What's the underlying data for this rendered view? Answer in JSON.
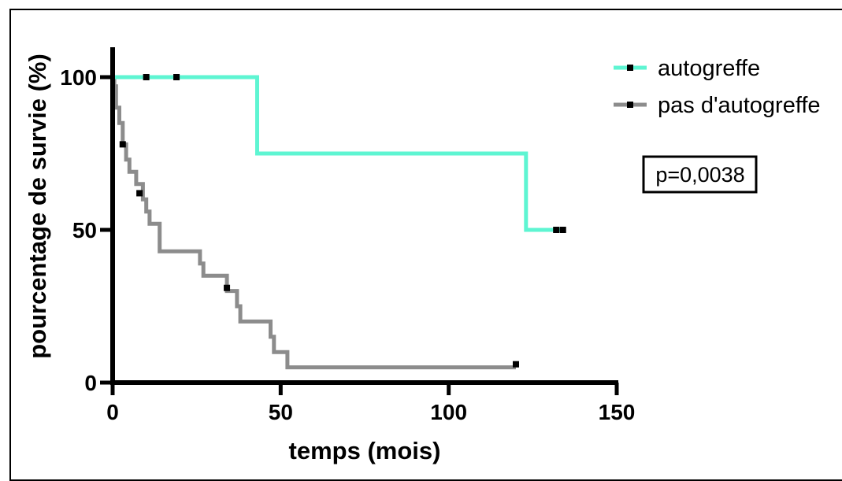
{
  "chart_data": {
    "type": "line",
    "subtype": "kaplan-meier",
    "title": "",
    "xlabel": "temps (mois)",
    "ylabel": "pourcentage de survie (%)",
    "xlim": [
      0,
      150
    ],
    "ylim": [
      0,
      100
    ],
    "xticks": [
      0,
      50,
      100,
      150
    ],
    "yticks": [
      0,
      50,
      100
    ],
    "grid": false,
    "legend_position": "top-right",
    "annotation": "p=0,0038",
    "series": [
      {
        "name": "autogreffe",
        "color": "#5ef5d2",
        "x": [
          0,
          43,
          43,
          123,
          123,
          134
        ],
        "y": [
          100,
          100,
          75,
          75,
          50,
          50
        ],
        "censored": [
          {
            "x": 10,
            "y": 100
          },
          {
            "x": 19,
            "y": 100
          },
          {
            "x": 132,
            "y": 50
          },
          {
            "x": 134,
            "y": 50
          }
        ]
      },
      {
        "name": "pas d'autogreffe",
        "color": "#8c8c8c",
        "x": [
          0,
          0.5,
          0.5,
          1,
          1,
          2,
          2,
          3,
          3,
          4,
          4,
          5,
          5,
          7,
          7,
          9,
          9,
          10,
          10,
          11,
          11,
          14,
          14,
          26,
          26,
          27,
          27,
          34,
          34,
          37,
          37,
          38,
          38,
          47,
          47,
          48,
          48,
          52,
          52,
          120
        ],
        "y": [
          100,
          100,
          97,
          97,
          90,
          90,
          85,
          85,
          78,
          78,
          73,
          73,
          69,
          69,
          65,
          65,
          60,
          60,
          56,
          56,
          52,
          52,
          43,
          43,
          39,
          39,
          35,
          35,
          30,
          30,
          25,
          25,
          20,
          20,
          15,
          15,
          10,
          10,
          5,
          5
        ],
        "censored": [
          {
            "x": 3,
            "y": 78
          },
          {
            "x": 8,
            "y": 62
          },
          {
            "x": 34,
            "y": 31
          },
          {
            "x": 120,
            "y": 6
          }
        ]
      }
    ]
  }
}
